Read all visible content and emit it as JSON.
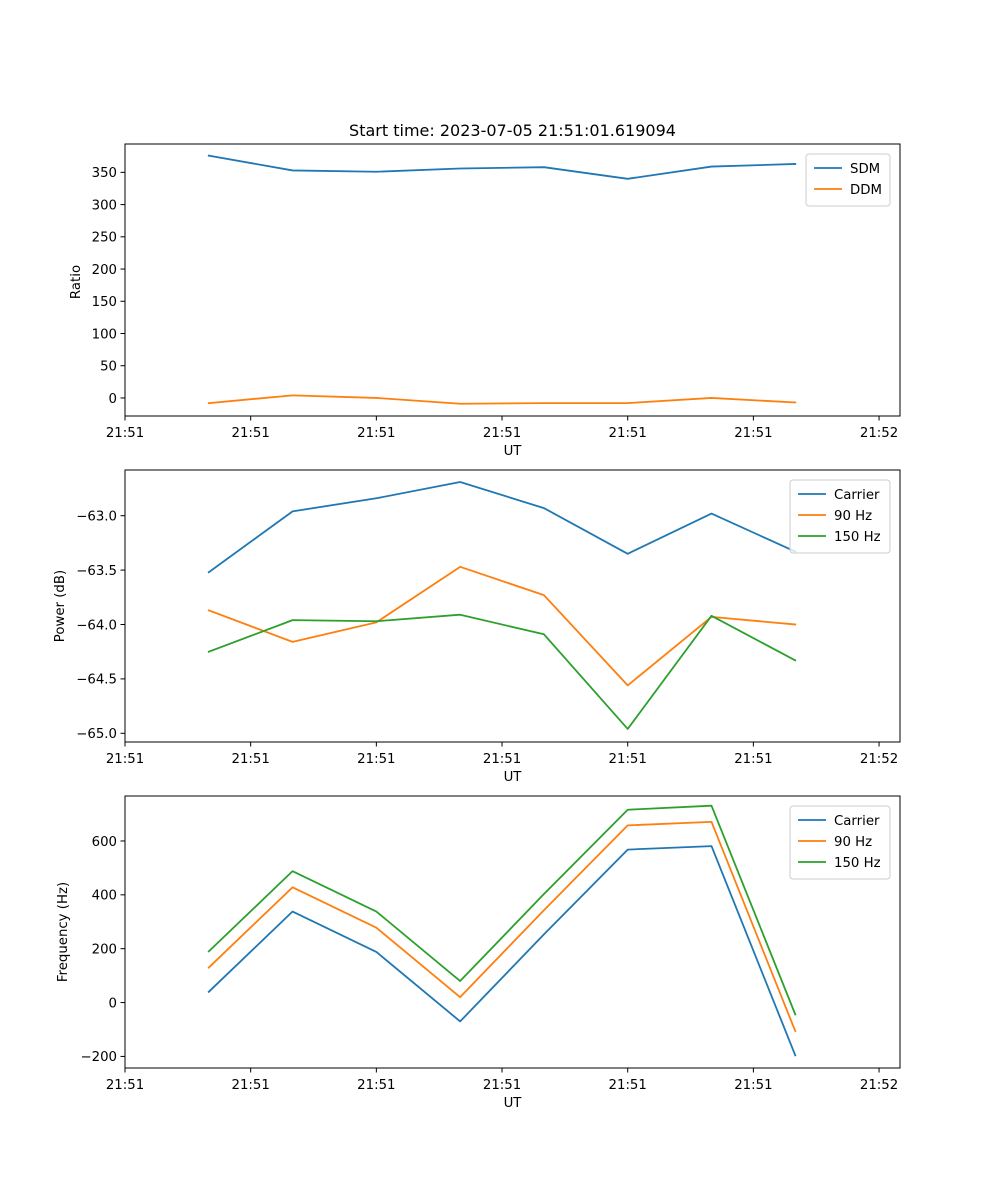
{
  "chart_data": [
    {
      "type": "line",
      "title": "Start time: 2023-07-05 21:51:01.619094",
      "xlabel": "UT",
      "ylabel": "Ratio",
      "x": [
        1,
        2,
        3,
        4,
        5,
        6,
        7,
        8
      ],
      "xlim": [
        0,
        9.25
      ],
      "xticks": [
        {
          "v": 0,
          "label": "21:51"
        },
        {
          "v": 1.5,
          "label": "21:51"
        },
        {
          "v": 3,
          "label": "21:51"
        },
        {
          "v": 4.5,
          "label": "21:51"
        },
        {
          "v": 6,
          "label": "21:51"
        },
        {
          "v": 7.5,
          "label": "21:51"
        },
        {
          "v": 9,
          "label": "21:52"
        }
      ],
      "ylim": [
        -28,
        394
      ],
      "yticks": [
        {
          "v": 0,
          "label": "0"
        },
        {
          "v": 50,
          "label": "50"
        },
        {
          "v": 100,
          "label": "100"
        },
        {
          "v": 150,
          "label": "150"
        },
        {
          "v": 200,
          "label": "200"
        },
        {
          "v": 250,
          "label": "250"
        },
        {
          "v": 300,
          "label": "300"
        },
        {
          "v": 350,
          "label": "350"
        }
      ],
      "legend_position": "top-right",
      "series": [
        {
          "name": "SDM",
          "color": "#1f77b4",
          "values": [
            376,
            353,
            351,
            356,
            358,
            340,
            359,
            363
          ]
        },
        {
          "name": "DDM",
          "color": "#ff7f0e",
          "values": [
            -8,
            4,
            0,
            -9,
            -8,
            -8,
            0,
            -7
          ]
        }
      ]
    },
    {
      "type": "line",
      "title": "",
      "xlabel": "UT",
      "ylabel": "Power (dB)",
      "x": [
        1,
        2,
        3,
        4,
        5,
        6,
        7,
        8
      ],
      "xlim": [
        0,
        9.25
      ],
      "xticks": [
        {
          "v": 0,
          "label": "21:51"
        },
        {
          "v": 1.5,
          "label": "21:51"
        },
        {
          "v": 3,
          "label": "21:51"
        },
        {
          "v": 4.5,
          "label": "21:51"
        },
        {
          "v": 6,
          "label": "21:51"
        },
        {
          "v": 7.5,
          "label": "21:51"
        },
        {
          "v": 9,
          "label": "21:52"
        }
      ],
      "ylim": [
        -65.08,
        -62.58
      ],
      "yticks": [
        {
          "v": -65.0,
          "label": "−65.0"
        },
        {
          "v": -64.5,
          "label": "−64.5"
        },
        {
          "v": -64.0,
          "label": "−64.0"
        },
        {
          "v": -63.5,
          "label": "−63.5"
        },
        {
          "v": -63.0,
          "label": "−63.0"
        }
      ],
      "legend_position": "top-right",
      "series": [
        {
          "name": "Carrier",
          "color": "#1f77b4",
          "values": [
            -63.52,
            -62.96,
            -62.84,
            -62.69,
            -62.93,
            -63.35,
            -62.98,
            -63.33
          ]
        },
        {
          "name": "90 Hz",
          "color": "#ff7f0e",
          "values": [
            -63.87,
            -64.16,
            -63.98,
            -63.47,
            -63.73,
            -64.56,
            -63.93,
            -64.0
          ]
        },
        {
          "name": "150 Hz",
          "color": "#2ca02c",
          "values": [
            -64.25,
            -63.96,
            -63.97,
            -63.91,
            -64.09,
            -64.96,
            -63.92,
            -64.33
          ]
        }
      ]
    },
    {
      "type": "line",
      "title": "",
      "xlabel": "UT",
      "ylabel": "Frequency (Hz)",
      "x": [
        1,
        2,
        3,
        4,
        5,
        6,
        7,
        8
      ],
      "xlim": [
        0,
        9.25
      ],
      "xticks": [
        {
          "v": 0,
          "label": "21:51"
        },
        {
          "v": 1.5,
          "label": "21:51"
        },
        {
          "v": 3,
          "label": "21:51"
        },
        {
          "v": 4.5,
          "label": "21:51"
        },
        {
          "v": 6,
          "label": "21:51"
        },
        {
          "v": 7.5,
          "label": "21:51"
        },
        {
          "v": 9,
          "label": "21:52"
        }
      ],
      "ylim": [
        -243,
        767
      ],
      "yticks": [
        {
          "v": -200,
          "label": "−200"
        },
        {
          "v": 0,
          "label": "0"
        },
        {
          "v": 200,
          "label": "200"
        },
        {
          "v": 400,
          "label": "400"
        },
        {
          "v": 600,
          "label": "600"
        }
      ],
      "legend_position": "top-right",
      "series": [
        {
          "name": "Carrier",
          "color": "#1f77b4",
          "values": [
            40,
            338,
            188,
            -70,
            253,
            568,
            581,
            -196
          ]
        },
        {
          "name": "90 Hz",
          "color": "#ff7f0e",
          "values": [
            130,
            428,
            278,
            20,
            343,
            658,
            671,
            -106
          ]
        },
        {
          "name": "150 Hz",
          "color": "#2ca02c",
          "values": [
            190,
            488,
            338,
            80,
            403,
            716,
            731,
            -44
          ]
        }
      ]
    }
  ]
}
